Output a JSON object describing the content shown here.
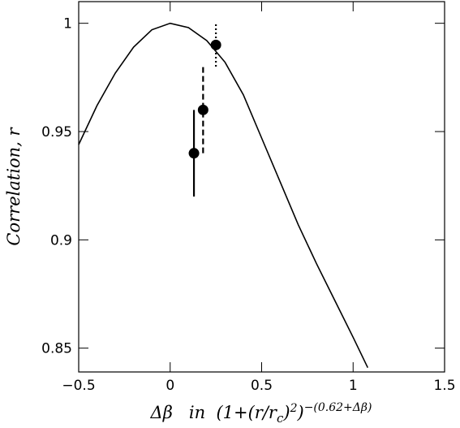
{
  "chart_data": {
    "type": "line",
    "y_label": "Correlation, r",
    "x_label": {
      "main": "Δβ   in  (1+(r/r",
      "sub": "c",
      "mid": ")",
      "sup1": "2",
      "close": ")",
      "sup2": "−(0.62+Δβ)"
    },
    "xlim": [
      -0.5,
      1.5
    ],
    "ylim": [
      0.839,
      1.01
    ],
    "xticks": [
      {
        "value": -0.5,
        "label": "−0.5"
      },
      0,
      0.5,
      1,
      1.5
    ],
    "yticks": [
      0.85,
      0.9,
      0.95,
      1
    ],
    "curve": {
      "color": "#000000",
      "x": [
        -0.5,
        -0.4,
        -0.3,
        -0.2,
        -0.1,
        0,
        0.1,
        0.2,
        0.3,
        0.4,
        0.5,
        0.6,
        0.7,
        0.8,
        0.9,
        1.0,
        1.08
      ],
      "values": [
        0.944,
        0.962,
        0.977,
        0.989,
        0.997,
        1.0,
        0.998,
        0.992,
        0.982,
        0.967,
        0.947,
        0.927,
        0.907,
        0.889,
        0.872,
        0.855,
        0.841
      ]
    },
    "points": {
      "color": "#000000",
      "x": [
        0.13,
        0.18,
        0.25
      ],
      "values": [
        0.94,
        0.96,
        0.99
      ],
      "errors": [
        0.02,
        0.02,
        0.01
      ],
      "styles": [
        "solid",
        "dashed",
        "dotted"
      ]
    }
  }
}
